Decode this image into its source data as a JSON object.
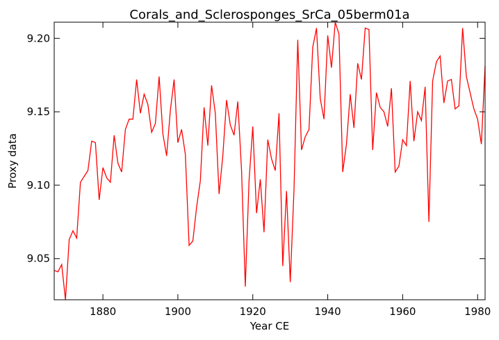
{
  "chart_data": {
    "type": "line",
    "title": "Corals_and_Sclerosponges_SrCa_05berm01a",
    "xlabel": "Year CE",
    "ylabel": "Proxy data",
    "xlim": [
      1867,
      1982
    ],
    "ylim": [
      9.022,
      9.211
    ],
    "xticks": [
      1880,
      1900,
      1920,
      1940,
      1960,
      1980
    ],
    "xtick_labels": [
      "1880",
      "1900",
      "1920",
      "1940",
      "1960",
      "1980"
    ],
    "yticks": [
      9.05,
      9.1,
      9.15,
      9.2
    ],
    "ytick_labels": [
      "9.05",
      "9.10",
      "9.15",
      "9.20"
    ],
    "grid": false,
    "series": [
      {
        "color": "#ff0000",
        "x": [
          1867,
          1868,
          1869,
          1870,
          1871,
          1872,
          1873,
          1874,
          1875,
          1876,
          1877,
          1878,
          1879,
          1880,
          1881,
          1882,
          1883,
          1884,
          1885,
          1886,
          1887,
          1888,
          1889,
          1890,
          1891,
          1892,
          1893,
          1894,
          1895,
          1896,
          1897,
          1898,
          1899,
          1900,
          1901,
          1902,
          1903,
          1904,
          1905,
          1906,
          1907,
          1908,
          1909,
          1910,
          1911,
          1912,
          1913,
          1914,
          1915,
          1916,
          1917,
          1918,
          1919,
          1920,
          1921,
          1922,
          1923,
          1924,
          1925,
          1926,
          1927,
          1928,
          1929,
          1930,
          1931,
          1932,
          1933,
          1934,
          1935,
          1936,
          1937,
          1938,
          1939,
          1940,
          1941,
          1942,
          1943,
          1944,
          1945,
          1946,
          1947,
          1948,
          1949,
          1950,
          1951,
          1952,
          1953,
          1954,
          1955,
          1956,
          1957,
          1958,
          1959,
          1960,
          1961,
          1962,
          1963,
          1964,
          1965,
          1966,
          1967,
          1968,
          1969,
          1970,
          1971,
          1972,
          1973,
          1974,
          1975,
          1976,
          1977,
          1978,
          1979,
          1980,
          1981,
          1982
        ],
        "y": [
          9.042,
          9.041,
          9.046,
          9.022,
          9.063,
          9.069,
          9.064,
          9.102,
          9.106,
          9.11,
          9.13,
          9.129,
          9.09,
          9.112,
          9.105,
          9.102,
          9.134,
          9.115,
          9.109,
          9.138,
          9.145,
          9.145,
          9.172,
          9.149,
          9.162,
          9.155,
          9.136,
          9.142,
          9.174,
          9.135,
          9.12,
          9.151,
          9.172,
          9.129,
          9.138,
          9.121,
          9.059,
          9.062,
          9.085,
          9.103,
          9.153,
          9.127,
          9.168,
          9.149,
          9.094,
          9.12,
          9.158,
          9.141,
          9.134,
          9.157,
          9.11,
          9.031,
          9.103,
          9.14,
          9.081,
          9.104,
          9.068,
          9.131,
          9.118,
          9.11,
          9.149,
          9.045,
          9.096,
          9.034,
          9.097,
          9.199,
          9.124,
          9.133,
          9.138,
          9.194,
          9.207,
          9.159,
          9.145,
          9.202,
          9.18,
          9.211,
          9.203,
          9.109,
          9.128,
          9.162,
          9.139,
          9.183,
          9.172,
          9.207,
          9.206,
          9.124,
          9.163,
          9.153,
          9.15,
          9.14,
          9.166,
          9.109,
          9.113,
          9.131,
          9.127,
          9.171,
          9.13,
          9.15,
          9.144,
          9.167,
          9.075,
          9.171,
          9.184,
          9.188,
          9.156,
          9.171,
          9.172,
          9.152,
          9.154,
          9.207,
          9.174,
          9.163,
          9.152,
          9.145,
          9.128,
          9.181
        ]
      }
    ]
  }
}
